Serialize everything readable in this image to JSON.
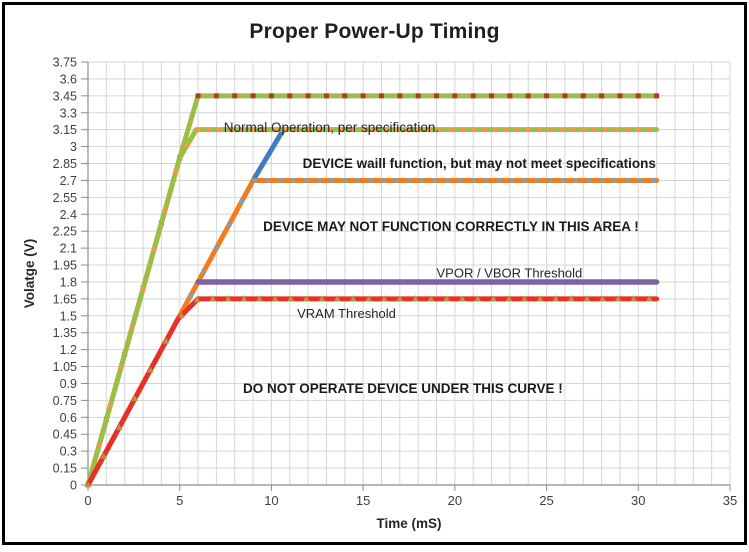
{
  "title": "Proper Power-Up Timing",
  "chart_data": {
    "type": "line",
    "title": "Proper Power-Up Timing",
    "xlabel": "Time (mS)",
    "ylabel": "Volatge (V)",
    "xlim": [
      0,
      35
    ],
    "ylim": [
      0,
      3.75
    ],
    "x_ticks": [
      0,
      5,
      10,
      15,
      20,
      25,
      30,
      35
    ],
    "y_ticks": [
      0,
      0.15,
      0.3,
      0.45,
      0.6,
      0.75,
      0.9,
      1.05,
      1.2,
      1.35,
      1.5,
      1.65,
      1.8,
      1.95,
      2.1,
      2.25,
      2.4,
      2.55,
      2.7,
      2.85,
      3,
      3.15,
      3.3,
      3.45,
      3.6,
      3.75
    ],
    "x_grid_step": 1,
    "y_grid_step": 0.15,
    "grid": true,
    "legend": "none",
    "grid_color": "#d6d6d6",
    "axis_color": "#8c8c8c",
    "tick_text_color": "#404040",
    "axis_title_color": "#262626",
    "series": [
      {
        "name": "ramp-continuation-blue",
        "color": "#3f7dbe",
        "width": 5,
        "points": [
          [
            9,
            2.7
          ],
          [
            10.65,
            3.15
          ]
        ]
      },
      {
        "name": "rail-3v45",
        "color": "#9ebd45",
        "width": 5,
        "points": [
          [
            0,
            0
          ],
          [
            5,
            2.9
          ],
          [
            6,
            3.45
          ],
          [
            31,
            3.45
          ]
        ],
        "marker": {
          "shape": "square",
          "color": "#b33a27",
          "size": 5,
          "step": 1
        }
      },
      {
        "name": "rail-3v15",
        "color": "#9ebd45",
        "width": 5,
        "points": [
          [
            0,
            0
          ],
          [
            5,
            2.9
          ],
          [
            5.9,
            3.15
          ],
          [
            31,
            3.15
          ]
        ],
        "marker": {
          "shape": "square",
          "color": "#f79646",
          "size": 4.4,
          "step": 0.6
        }
      },
      {
        "name": "rail-2v7",
        "color": "#f27d21",
        "width": 5,
        "points": [
          [
            0,
            0
          ],
          [
            9,
            2.7
          ],
          [
            31,
            2.7
          ]
        ],
        "marker": {
          "shape": "square",
          "color": "#7ba2ba",
          "size": 4.4,
          "step": 0.7
        }
      },
      {
        "name": "vpor-vbor-threshold",
        "color": "#7e62a7",
        "width": 5.5,
        "points": [
          [
            6,
            1.8
          ],
          [
            31,
            1.8
          ]
        ]
      },
      {
        "name": "vram-threshold",
        "color": "#e73128",
        "width": 5,
        "points": [
          [
            0,
            0
          ],
          [
            4.9,
            1.47
          ],
          [
            6,
            1.65
          ],
          [
            31,
            1.65
          ]
        ],
        "marker": {
          "shape": "triangle",
          "color": "#af9a3a",
          "size": 6,
          "step": 0.85
        }
      }
    ],
    "annotations": [
      {
        "id": "normal-operation",
        "text": "Normal Operation, per specification.",
        "x": 7.4,
        "y": 3.13,
        "bold": false,
        "size": 13.5,
        "color": "#262626"
      },
      {
        "id": "device-will-function",
        "text": "DEVICE waill function, but may not meet specifications",
        "x": 11.7,
        "y": 2.81,
        "bold": true,
        "size": 13.5,
        "color": "#1a1a1a"
      },
      {
        "id": "device-may-not-function",
        "text": "DEVICE MAY NOT FUNCTION CORRECTLY IN THIS AREA !",
        "x": 9.55,
        "y": 2.25,
        "bold": true,
        "size": 13.5,
        "color": "#1a1a1a"
      },
      {
        "id": "vpor-vbor-label",
        "text": "VPOR / VBOR Threshold",
        "x": 19.0,
        "y": 1.84,
        "bold": false,
        "size": 13,
        "color": "#262626"
      },
      {
        "id": "vram-label",
        "text": "VRAM Threshold",
        "x": 11.4,
        "y": 1.48,
        "bold": false,
        "size": 13,
        "color": "#262626"
      },
      {
        "id": "do-not-operate",
        "text": "DO NOT OPERATE DEVICE UNDER THIS CURVE !",
        "x": 8.45,
        "y": 0.815,
        "bold": true,
        "size": 13.5,
        "color": "#1a1a1a"
      }
    ]
  }
}
